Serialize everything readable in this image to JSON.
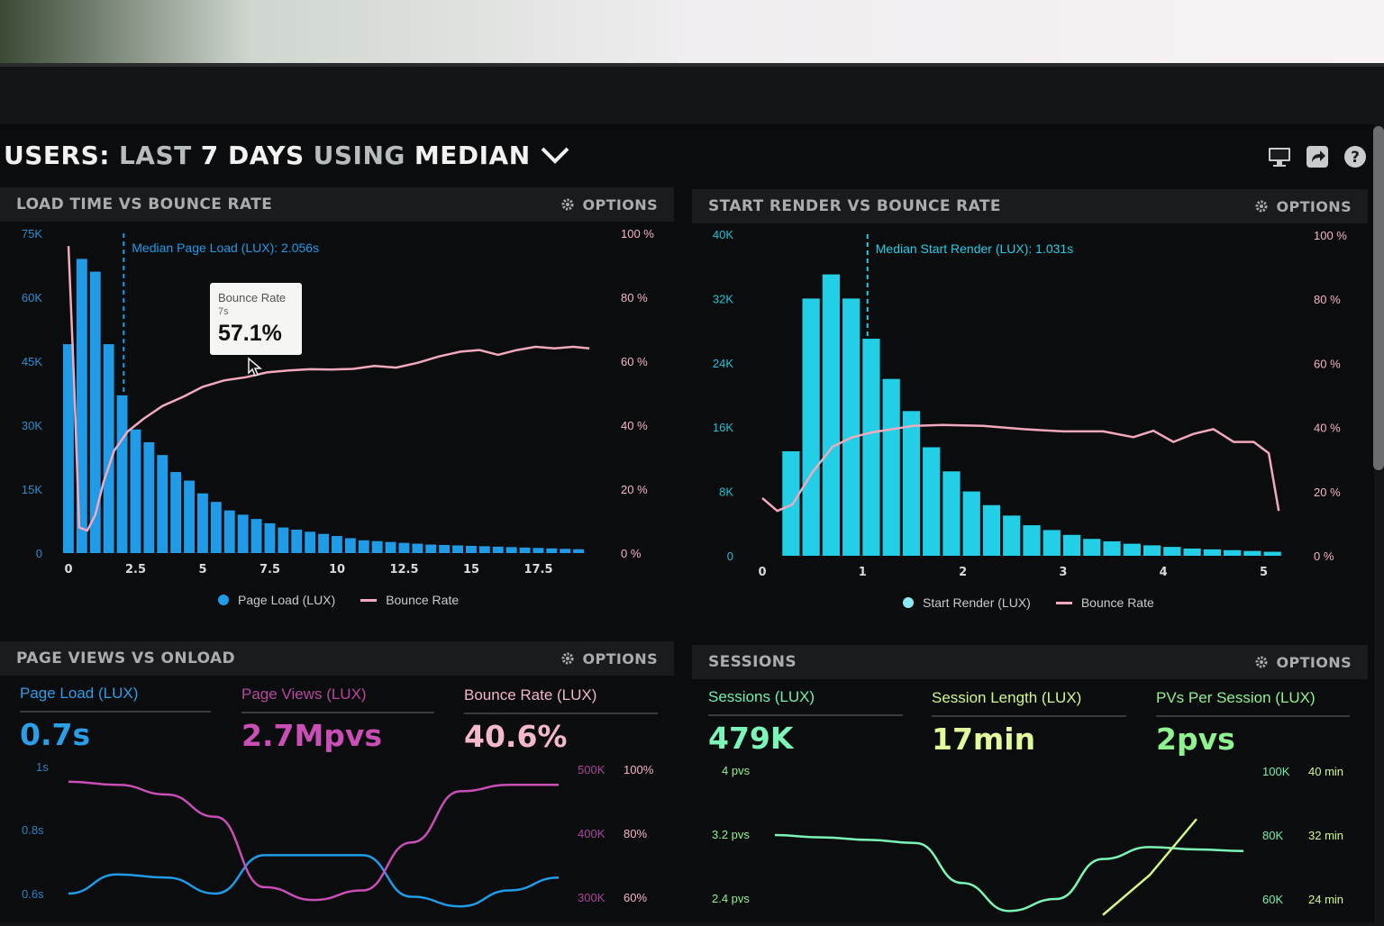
{
  "header": {
    "title_users": "USERS:",
    "title_last": "LAST",
    "title_days": "7 DAYS",
    "title_using": "USING",
    "title_median": "MEDIAN",
    "icons": [
      "monitor-icon",
      "share-icon",
      "help-icon"
    ]
  },
  "options_label": "OPTIONS",
  "colors": {
    "page_load": "#1f9be8",
    "start_render": "#22cfe6",
    "bounce_rate": "#f2a9bd",
    "purple": "#c94fb6",
    "green": "#7bf5b8",
    "lime": "#d5f787"
  },
  "panels": {
    "load_time": {
      "title": "LOAD TIME VS BOUNCE RATE",
      "median_label": "Median Page Load (LUX): 2.056s",
      "legend_bars": "Page Load (LUX)",
      "legend_line": "Bounce Rate",
      "tooltip": {
        "title": "Bounce Rate",
        "sub": "7s",
        "value": "57.1%"
      }
    },
    "start_render": {
      "title": "START RENDER VS BOUNCE RATE",
      "median_label": "Median Start Render (LUX): 1.031s",
      "legend_bars": "Start Render (LUX)",
      "legend_line": "Bounce Rate"
    },
    "page_views": {
      "title": "PAGE VIEWS VS ONLOAD",
      "metrics": [
        {
          "label": "Page Load (LUX)",
          "value": "0.7s"
        },
        {
          "label": "Page Views (LUX)",
          "value": "2.7Mpvs"
        },
        {
          "label": "Bounce Rate (LUX)",
          "value": "40.6%"
        }
      ],
      "left_axis": [
        "1s",
        "0.8s",
        "0.6s"
      ],
      "right_axis_views": [
        "500K",
        "400K",
        "300K"
      ],
      "right_axis_bounce": [
        "100%",
        "80%",
        "60%"
      ]
    },
    "sessions": {
      "title": "SESSIONS",
      "metrics": [
        {
          "label": "Sessions (LUX)",
          "value": "479K"
        },
        {
          "label": "Session Length (LUX)",
          "value": "17min"
        },
        {
          "label": "PVs Per Session (LUX)",
          "value": "2pvs"
        }
      ],
      "left_axis": [
        "4 pvs",
        "3.2 pvs",
        "2.4 pvs"
      ],
      "right_axis_sessions": [
        "100K",
        "80K",
        "60K"
      ],
      "right_axis_length": [
        "40 min",
        "32 min",
        "24 min"
      ]
    }
  },
  "chart_data": [
    {
      "type": "bar",
      "title": "LOAD TIME VS BOUNCE RATE",
      "x_ticks": [
        "0",
        "2.5",
        "5",
        "7.5",
        "10",
        "12.5",
        "15",
        "17.5"
      ],
      "y_left_ticks": [
        "75K",
        "60K",
        "45K",
        "30K",
        "15K",
        "0"
      ],
      "y_right_ticks": [
        "100 %",
        "80 %",
        "60 %",
        "40 %",
        "20 %",
        "0 %"
      ],
      "ylim": [
        0,
        75000
      ],
      "xlim": [
        0,
        20
      ],
      "median_x": 2.056,
      "series": [
        {
          "name": "Page Load (LUX)",
          "type": "bar",
          "bar_width": 0.5,
          "x": [
            0,
            0.5,
            1,
            1.5,
            2,
            2.5,
            3,
            3.5,
            4,
            4.5,
            5,
            5.5,
            6,
            6.5,
            7,
            7.5,
            8,
            8.5,
            9,
            9.5,
            10,
            10.5,
            11,
            11.5,
            12,
            12.5,
            13,
            13.5,
            14,
            14.5,
            15,
            15.5,
            16,
            16.5,
            17,
            17.5,
            18,
            18.5,
            19
          ],
          "values": [
            49000,
            69000,
            66000,
            49000,
            37000,
            29000,
            26000,
            23000,
            19000,
            17000,
            14000,
            12000,
            10000,
            9000,
            8000,
            7000,
            6000,
            5500,
            5000,
            4500,
            4000,
            3500,
            3000,
            2800,
            2600,
            2400,
            2200,
            2000,
            1900,
            1800,
            1700,
            1600,
            1500,
            1400,
            1300,
            1200,
            1100,
            1000,
            900
          ]
        },
        {
          "name": "Bounce Rate",
          "type": "line",
          "x": [
            0,
            0.2,
            0.4,
            0.7,
            1,
            1.3,
            1.7,
            2.2,
            2.8,
            3.5,
            4.3,
            5,
            5.8,
            6.6,
            7.4,
            8.2,
            9,
            9.8,
            10.6,
            11.4,
            12.2,
            13,
            13.8,
            14.6,
            15.3,
            16,
            16.7,
            17.4,
            18.1,
            18.8,
            19.4
          ],
          "values": [
            96,
            55,
            8,
            7,
            12,
            22,
            32,
            38,
            42,
            46,
            49,
            52,
            54,
            55,
            56.5,
            57.1,
            57.5,
            57.4,
            57.6,
            58.5,
            58,
            59.5,
            61.5,
            63,
            63.5,
            62,
            63.5,
            64.5,
            64,
            64.5,
            64
          ]
        }
      ]
    },
    {
      "type": "bar",
      "title": "START RENDER VS BOUNCE RATE",
      "x_ticks": [
        "0",
        "1",
        "2",
        "3",
        "4",
        "5"
      ],
      "y_left_ticks": [
        "40K",
        "32K",
        "24K",
        "16K",
        "8K",
        "0"
      ],
      "y_right_ticks": [
        "100 %",
        "80 %",
        "60 %",
        "40 %",
        "20 %",
        "0 %"
      ],
      "ylim": [
        0,
        40000
      ],
      "xlim": [
        0,
        5.3
      ],
      "median_x": 1.031,
      "series": [
        {
          "name": "Start Render (LUX)",
          "type": "bar",
          "bar_width": 0.2,
          "x": [
            0.2,
            0.4,
            0.6,
            0.8,
            1.0,
            1.2,
            1.4,
            1.6,
            1.8,
            2.0,
            2.2,
            2.4,
            2.6,
            2.8,
            3.0,
            3.2,
            3.4,
            3.6,
            3.8,
            4.0,
            4.2,
            4.4,
            4.6,
            4.8,
            5.0
          ],
          "values": [
            13000,
            32000,
            35000,
            32000,
            27000,
            22000,
            18000,
            13500,
            10500,
            8000,
            6300,
            5000,
            3800,
            3200,
            2600,
            2100,
            1800,
            1500,
            1300,
            1100,
            900,
            800,
            700,
            600,
            500
          ]
        },
        {
          "name": "Bounce Rate",
          "type": "line",
          "x": [
            0,
            0.15,
            0.3,
            0.5,
            0.7,
            0.9,
            1.1,
            1.3,
            1.5,
            1.8,
            2.2,
            2.6,
            3.0,
            3.4,
            3.7,
            3.9,
            4.1,
            4.3,
            4.5,
            4.7,
            4.9,
            5.05,
            5.15
          ],
          "values": [
            18,
            14,
            16,
            26,
            34,
            37,
            38.5,
            39.5,
            40.5,
            40.8,
            40.5,
            39.5,
            38.8,
            38.8,
            37,
            39,
            35.5,
            38,
            39.5,
            35.5,
            35.5,
            32,
            14
          ]
        }
      ]
    },
    {
      "type": "line",
      "title": "PAGE VIEWS VS ONLOAD",
      "y_left_ticks": [
        "1s",
        "0.8s",
        "0.6s"
      ],
      "y_right_ticks_views": [
        "500K",
        "400K",
        "300K"
      ],
      "y_right_ticks_bounce": [
        "100%",
        "80%",
        "60%"
      ],
      "x": [
        0,
        1,
        2,
        3,
        4,
        5,
        6,
        7,
        8,
        9,
        10
      ],
      "series": [
        {
          "name": "Page Load (LUX)",
          "values": [
            0.6,
            0.66,
            0.65,
            0.6,
            0.72,
            0.72,
            0.72,
            0.59,
            0.56,
            0.61,
            0.65
          ]
        },
        {
          "name": "Page Views (LUX)",
          "values": [
            0.95,
            0.94,
            0.91,
            0.84,
            0.62,
            0.58,
            0.61,
            0.76,
            0.92,
            0.94,
            0.94
          ]
        }
      ]
    },
    {
      "type": "line",
      "title": "SESSIONS",
      "y_left_ticks": [
        "4 pvs",
        "3.2 pvs",
        "2.4 pvs"
      ],
      "y_right_ticks_sessions": [
        "100K",
        "80K",
        "60K"
      ],
      "y_right_ticks_length": [
        "40 min",
        "32 min",
        "24 min"
      ],
      "x": [
        0,
        1,
        2,
        3,
        4,
        5,
        6,
        7,
        8,
        9,
        10
      ],
      "series": [
        {
          "name": "Sessions (LUX)",
          "values": [
            3.2,
            3.17,
            3.14,
            3.1,
            2.6,
            2.25,
            2.4,
            2.9,
            3.05,
            3.02,
            3.0
          ]
        },
        {
          "name": "PVs Per Session (LUX)",
          "values": [
            null,
            null,
            null,
            null,
            null,
            null,
            null,
            2.2,
            2.7,
            3.4,
            null
          ]
        }
      ]
    }
  ]
}
